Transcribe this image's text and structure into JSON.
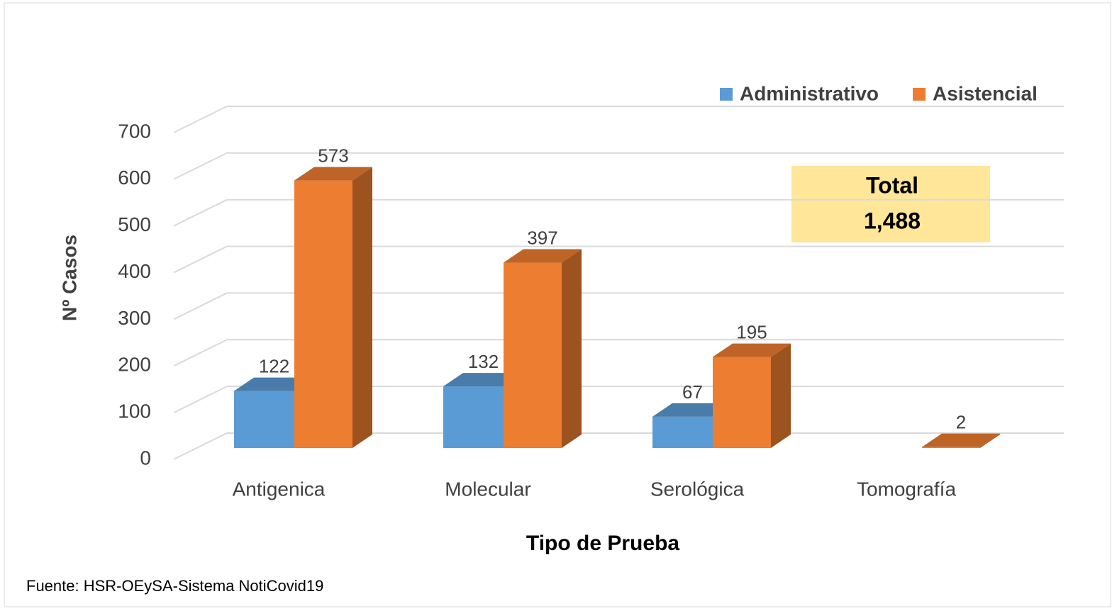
{
  "chart_data": {
    "type": "bar3d",
    "x_label": "Tipo de Prueba",
    "y_label": "Nº Casos",
    "categories": [
      "Antigenica",
      "Molecular",
      "Serológica",
      "Tomografía"
    ],
    "series": [
      {
        "name": "Administrativo",
        "color": "#5b9bd5",
        "values": [
          122,
          132,
          67,
          null
        ]
      },
      {
        "name": "Asistencial",
        "color": "#ed7d31",
        "values": [
          573,
          397,
          195,
          2
        ]
      }
    ],
    "ylim": [
      0,
      700
    ],
    "yticks": [
      0,
      100,
      200,
      300,
      400,
      500,
      600,
      700
    ],
    "grid": true,
    "legend": "top-right",
    "annotations": [
      "Total",
      "1,488"
    ],
    "source": "Fuente: HSR-OEySA-Sistema NotiCovid19"
  }
}
